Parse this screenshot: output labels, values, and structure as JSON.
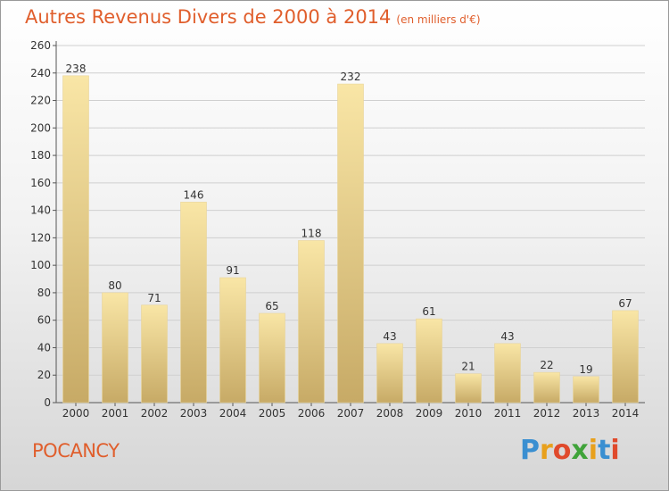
{
  "title": "Autres Revenus Divers de 2000 à 2014",
  "subtitle": "(en milliers d'€)",
  "location": "POCANCY",
  "brand": {
    "text": "Proxiti",
    "letter_colors": [
      "#3a8fd1",
      "#e8a01c",
      "#e04a2c",
      "#3fa33a",
      "#e8a01c",
      "#3a8fd1",
      "#e04a2c"
    ]
  },
  "colors": {
    "title": "#e05e2c",
    "bar_light": "#f8e3a0",
    "bar_dark": "#c9ad6a",
    "axis": "#555555",
    "grid": "#cfcfcf"
  },
  "chart_data": {
    "type": "bar",
    "categories": [
      "2000",
      "2001",
      "2002",
      "2003",
      "2004",
      "2005",
      "2006",
      "2007",
      "2008",
      "2009",
      "2010",
      "2011",
      "2012",
      "2013",
      "2014"
    ],
    "values": [
      238,
      80,
      71,
      146,
      91,
      65,
      118,
      232,
      43,
      61,
      21,
      43,
      22,
      19,
      67
    ],
    "ylim": [
      0,
      260
    ],
    "yticks": [
      0,
      20,
      40,
      60,
      80,
      100,
      120,
      140,
      160,
      180,
      200,
      220,
      240,
      260
    ],
    "grid": true,
    "data_labels": true
  }
}
